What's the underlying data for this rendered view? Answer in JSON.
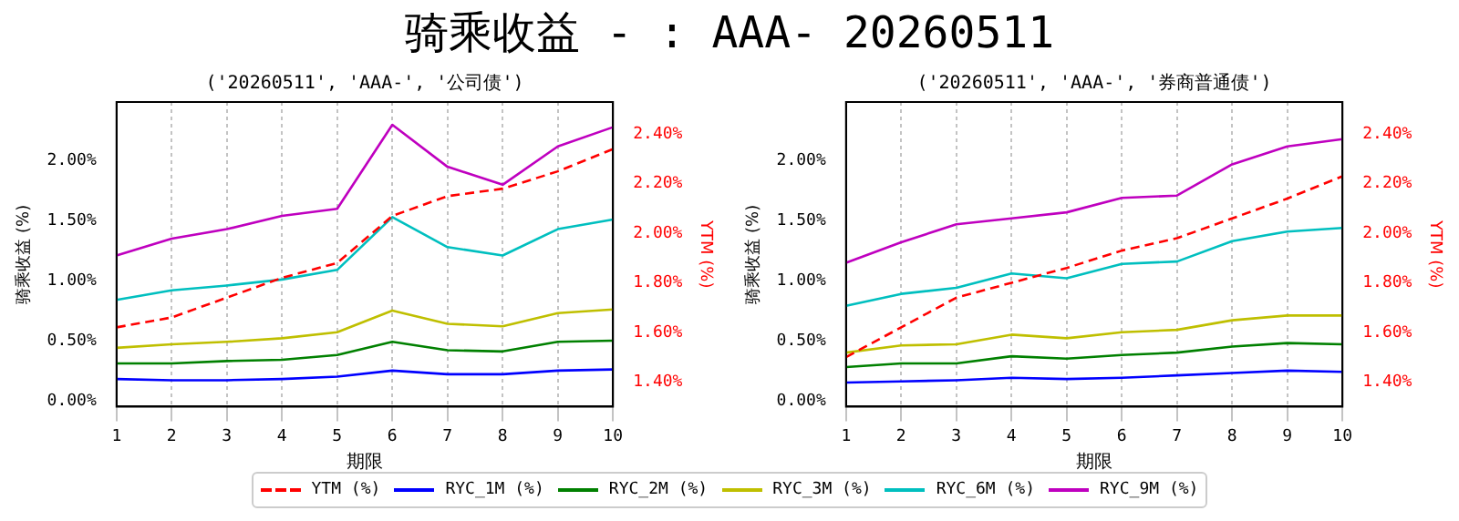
{
  "chart_data": [
    {
      "type": "line",
      "title": "骑乘收益 - : AAA- 20260511",
      "subtitle": "('20260511', 'AAA-', '公司债')",
      "xlabel": "期限",
      "ylabel": "骑乘收益 (%)",
      "y2label": "YTM (%)",
      "x": [
        1,
        2,
        3,
        4,
        5,
        6,
        7,
        8,
        9,
        10
      ],
      "xlim": [
        1,
        10
      ],
      "xticks": [
        1,
        2,
        3,
        4,
        5,
        6,
        7,
        8,
        9,
        10
      ],
      "ylim": [
        -0.05,
        2.49
      ],
      "yticks": [
        {
          "value": 0,
          "label": "0.00%"
        },
        {
          "value": 0.5,
          "label": "0.50%"
        },
        {
          "value": 1,
          "label": "1.00%"
        },
        {
          "value": 1.5,
          "label": "1.50%"
        },
        {
          "value": 2,
          "label": "2.00%"
        }
      ],
      "y2lim": [
        1.3,
        2.53
      ],
      "y2ticks": [
        {
          "value": 1.4,
          "label": "1.40%"
        },
        {
          "value": 1.6,
          "label": "1.60%"
        },
        {
          "value": 1.8,
          "label": "1.80%"
        },
        {
          "value": 2,
          "label": "2.00%"
        },
        {
          "value": 2.2,
          "label": "2.20%"
        },
        {
          "value": 2.4,
          "label": "2.40%"
        }
      ],
      "grid": "x",
      "legend": "bottom",
      "marker": "none",
      "series": [
        {
          "name": "YTM (%)",
          "color": "#ff0000",
          "axis": "y2",
          "line_style": "dashed",
          "values": [
            1.62,
            1.66,
            1.74,
            1.82,
            1.88,
            2.07,
            2.15,
            2.18,
            2.25,
            2.34
          ]
        },
        {
          "name": "RYC_1M (%)",
          "color": "#0000ff",
          "values": [
            0.18,
            0.17,
            0.17,
            0.18,
            0.2,
            0.25,
            0.22,
            0.22,
            0.25,
            0.26
          ]
        },
        {
          "name": "RYC_2M (%)",
          "color": "#008000",
          "values": [
            0.31,
            0.31,
            0.33,
            0.34,
            0.38,
            0.49,
            0.42,
            0.41,
            0.49,
            0.5
          ]
        },
        {
          "name": "RYC_3M (%)",
          "color": "#bfbf00",
          "values": [
            0.44,
            0.47,
            0.49,
            0.52,
            0.57,
            0.75,
            0.64,
            0.62,
            0.73,
            0.76
          ]
        },
        {
          "name": "RYC_6M (%)",
          "color": "#00bfbf",
          "values": [
            0.84,
            0.92,
            0.96,
            1.01,
            1.09,
            1.53,
            1.28,
            1.21,
            1.43,
            1.51
          ]
        },
        {
          "name": "RYC_9M (%)",
          "color": "#bf00bf",
          "values": [
            1.21,
            1.35,
            1.43,
            1.54,
            1.6,
            2.3,
            1.95,
            1.8,
            2.12,
            2.28
          ]
        }
      ]
    },
    {
      "type": "line",
      "subtitle": "('20260511', 'AAA-', '券商普通债')",
      "xlabel": "期限",
      "ylabel": "骑乘收益 (%)",
      "y2label": "YTM (%)",
      "x": [
        1,
        2,
        3,
        4,
        5,
        6,
        7,
        8,
        9,
        10
      ],
      "xlim": [
        1,
        10
      ],
      "xticks": [
        1,
        2,
        3,
        4,
        5,
        6,
        7,
        8,
        9,
        10
      ],
      "ylim": [
        -0.05,
        2.49
      ],
      "yticks": [
        {
          "value": 0,
          "label": "0.00%"
        },
        {
          "value": 0.5,
          "label": "0.50%"
        },
        {
          "value": 1,
          "label": "1.00%"
        },
        {
          "value": 1.5,
          "label": "1.50%"
        },
        {
          "value": 2,
          "label": "2.00%"
        }
      ],
      "y2lim": [
        1.3,
        2.53
      ],
      "y2ticks": [
        {
          "value": 1.4,
          "label": "1.40%"
        },
        {
          "value": 1.6,
          "label": "1.60%"
        },
        {
          "value": 1.8,
          "label": "1.80%"
        },
        {
          "value": 2,
          "label": "2.00%"
        },
        {
          "value": 2.2,
          "label": "2.20%"
        },
        {
          "value": 2.4,
          "label": "2.40%"
        }
      ],
      "grid": "x",
      "marker": "none",
      "series": [
        {
          "color": "#ff0000",
          "axis": "y2",
          "line_style": "dashed",
          "values": [
            1.5,
            1.62,
            1.74,
            1.8,
            1.86,
            1.93,
            1.98,
            2.06,
            2.14,
            2.23
          ]
        },
        {
          "color": "#0000ff",
          "values": [
            0.15,
            0.16,
            0.17,
            0.19,
            0.18,
            0.19,
            0.21,
            0.23,
            0.25,
            0.24
          ]
        },
        {
          "color": "#008000",
          "values": [
            0.28,
            0.31,
            0.31,
            0.37,
            0.35,
            0.38,
            0.4,
            0.45,
            0.48,
            0.47
          ]
        },
        {
          "color": "#bfbf00",
          "values": [
            0.4,
            0.46,
            0.47,
            0.55,
            0.52,
            0.57,
            0.59,
            0.67,
            0.71,
            0.71
          ]
        },
        {
          "color": "#00bfbf",
          "values": [
            0.79,
            0.89,
            0.94,
            1.06,
            1.02,
            1.14,
            1.16,
            1.33,
            1.41,
            1.44
          ]
        },
        {
          "color": "#bf00bf",
          "values": [
            1.15,
            1.32,
            1.47,
            1.52,
            1.57,
            1.69,
            1.71,
            1.97,
            2.12,
            2.18
          ]
        }
      ]
    }
  ]
}
